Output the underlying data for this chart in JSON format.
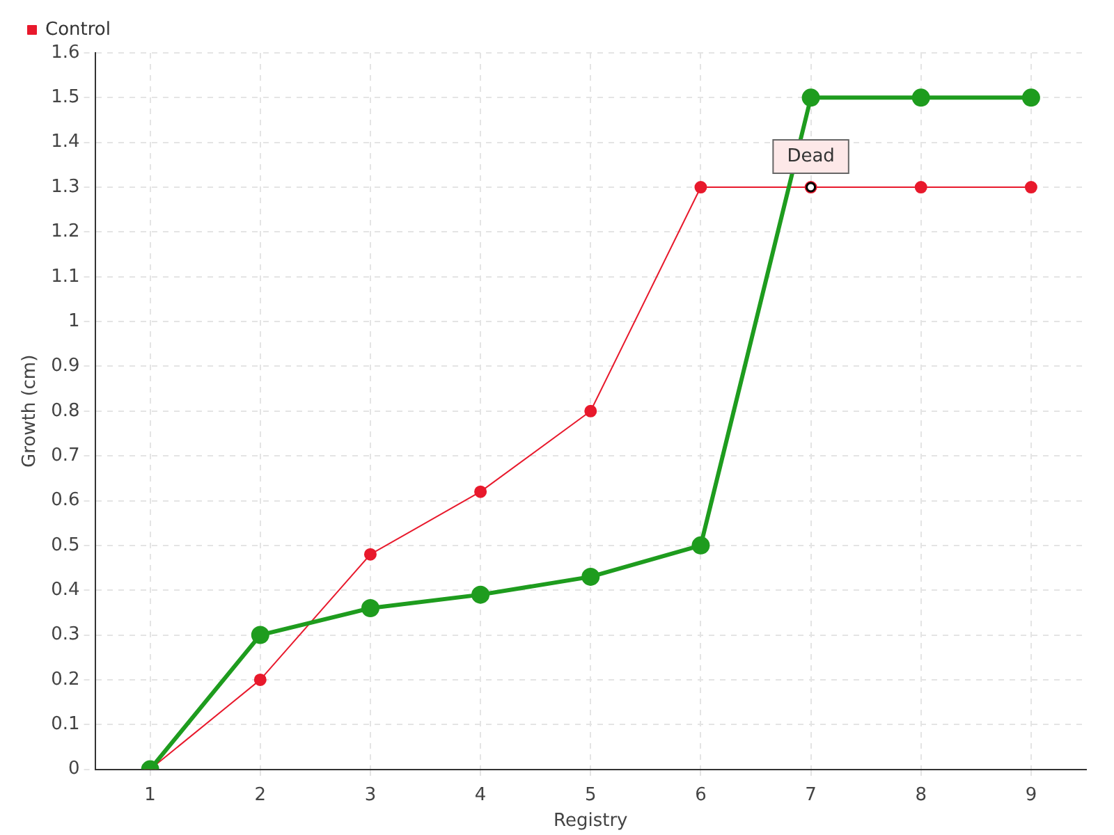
{
  "chart_data": {
    "type": "line",
    "xlabel": "Registry",
    "ylabel": "Growth (cm)",
    "categories": [
      "1",
      "2",
      "3",
      "4",
      "5",
      "6",
      "7",
      "8",
      "9"
    ],
    "series": [
      {
        "color": "#1e9c1e",
        "values": [
          0,
          0.3,
          0.36,
          0.39,
          0.43,
          0.5,
          1.5,
          1.5,
          1.5
        ]
      },
      {
        "name": "Control",
        "color": "#e8192c",
        "values": [
          0,
          0.2,
          0.48,
          0.62,
          0.8,
          1.3,
          1.3,
          1.3,
          1.3
        ]
      }
    ],
    "ylim": [
      0,
      1.6
    ],
    "yticks": [
      0,
      0.1,
      0.2,
      0.3,
      0.4,
      0.5,
      0.6,
      0.7,
      0.8,
      0.9,
      1,
      1.1,
      1.2,
      1.3,
      1.4,
      1.5,
      1.6
    ],
    "annotations": [
      {
        "text": "Dead",
        "x": "7",
        "y": 1.3
      }
    ],
    "grid": true,
    "legend": "top left",
    "marker": "circle",
    "line_style": "solid"
  }
}
